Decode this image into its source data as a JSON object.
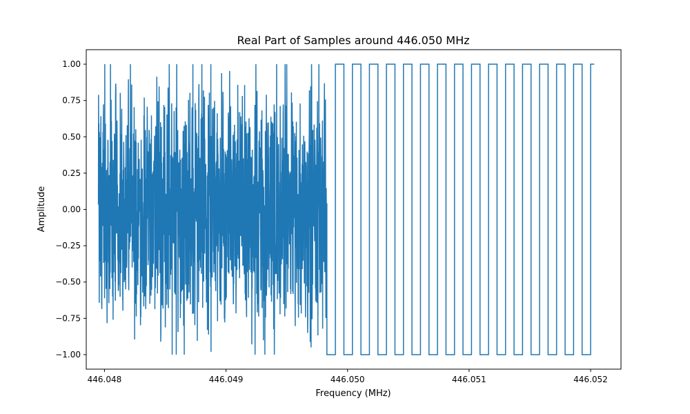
{
  "chart_data": {
    "type": "line",
    "title": "Real Part of Samples around 446.050 MHz",
    "xlabel": "Frequency (MHz)",
    "ylabel": "Amplitude",
    "xlim": [
      446.04785,
      446.05225
    ],
    "ylim": [
      -1.1,
      1.1
    ],
    "xticks": [
      446.048,
      446.049,
      446.05,
      446.051,
      446.052
    ],
    "xtick_labels": [
      "446.048",
      "446.049",
      "446.050",
      "446.051",
      "446.052"
    ],
    "yticks": [
      -1.0,
      -0.75,
      -0.5,
      -0.25,
      0.0,
      0.25,
      0.5,
      0.75,
      1.0
    ],
    "ytick_labels": [
      "−1.00",
      "−0.75",
      "−0.50",
      "−0.25",
      "0.00",
      "0.25",
      "0.50",
      "0.75",
      "1.00"
    ],
    "grid": false,
    "series_color": "#1f77b4",
    "noise_region": {
      "x_start": 446.04795,
      "x_end": 446.04983,
      "y_min": -1.0,
      "y_max": 1.0
    },
    "square_wave": {
      "y_high": 1.0,
      "y_low": -1.0,
      "segments": [
        {
          "x0": 446.04983,
          "x1": 446.0499,
          "y": -1.0
        },
        {
          "x0": 446.0499,
          "x1": 446.04997,
          "y": 1.0
        },
        {
          "x0": 446.04997,
          "x1": 446.05004,
          "y": -1.0
        },
        {
          "x0": 446.05004,
          "x1": 446.05011,
          "y": 1.0
        },
        {
          "x0": 446.05011,
          "x1": 446.05018,
          "y": -1.0
        },
        {
          "x0": 446.05018,
          "x1": 446.05025,
          "y": 1.0
        },
        {
          "x0": 446.05025,
          "x1": 446.05032,
          "y": -1.0
        },
        {
          "x0": 446.05032,
          "x1": 446.05039,
          "y": 1.0
        },
        {
          "x0": 446.05039,
          "x1": 446.05046,
          "y": -1.0
        },
        {
          "x0": 446.05046,
          "x1": 446.05053,
          "y": 1.0
        },
        {
          "x0": 446.05053,
          "x1": 446.0506,
          "y": -1.0
        },
        {
          "x0": 446.0506,
          "x1": 446.05067,
          "y": 1.0
        },
        {
          "x0": 446.05067,
          "x1": 446.05074,
          "y": -1.0
        },
        {
          "x0": 446.05074,
          "x1": 446.05081,
          "y": 1.0
        },
        {
          "x0": 446.05081,
          "x1": 446.05088,
          "y": -1.0
        },
        {
          "x0": 446.05088,
          "x1": 446.05095,
          "y": 1.0
        },
        {
          "x0": 446.05095,
          "x1": 446.05102,
          "y": -1.0
        },
        {
          "x0": 446.05102,
          "x1": 446.05109,
          "y": 1.0
        },
        {
          "x0": 446.05109,
          "x1": 446.05116,
          "y": -1.0
        },
        {
          "x0": 446.05116,
          "x1": 446.05123,
          "y": 1.0
        },
        {
          "x0": 446.05123,
          "x1": 446.0513,
          "y": -1.0
        },
        {
          "x0": 446.0513,
          "x1": 446.05137,
          "y": 1.0
        },
        {
          "x0": 446.05137,
          "x1": 446.05144,
          "y": -1.0
        },
        {
          "x0": 446.05144,
          "x1": 446.05151,
          "y": 1.0
        },
        {
          "x0": 446.05151,
          "x1": 446.05158,
          "y": -1.0
        },
        {
          "x0": 446.05158,
          "x1": 446.05165,
          "y": 1.0
        },
        {
          "x0": 446.05165,
          "x1": 446.05172,
          "y": -1.0
        },
        {
          "x0": 446.05172,
          "x1": 446.05179,
          "y": 1.0
        },
        {
          "x0": 446.05179,
          "x1": 446.05186,
          "y": -1.0
        },
        {
          "x0": 446.05186,
          "x1": 446.05193,
          "y": 1.0
        },
        {
          "x0": 446.05193,
          "x1": 446.052,
          "y": -1.0
        },
        {
          "x0": 446.052,
          "x1": 446.05203,
          "y": 1.0
        }
      ]
    }
  }
}
